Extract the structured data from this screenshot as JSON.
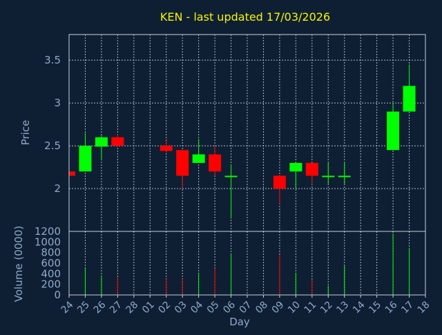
{
  "chart_data": [
    {
      "type": "candlestick",
      "title": "KEN - last updated 17/03/2026",
      "ylabel": "Price",
      "ylim": [
        1.5,
        3.8
      ],
      "yticks": [
        2,
        2.5,
        3,
        3.5
      ],
      "ytick_labels": [
        "2",
        "2.5",
        "3",
        "3.5"
      ],
      "grid": true,
      "colors": {
        "up": "#00ff00",
        "down": "#ff0000",
        "background": "#0f1f33",
        "text": "#8fa9c8",
        "title": "#f5f500"
      },
      "candles": [
        {
          "date": "24",
          "open": 2.2,
          "high": 2.2,
          "low": 2.15,
          "close": 2.15
        },
        {
          "date": "25",
          "open": 2.2,
          "high": 2.65,
          "low": 2.2,
          "close": 2.5
        },
        {
          "date": "26",
          "open": 2.49,
          "high": 2.62,
          "low": 2.33,
          "close": 2.6
        },
        {
          "date": "27",
          "open": 2.6,
          "high": 2.64,
          "low": 2.49,
          "close": 2.5
        },
        {
          "date": "02",
          "open": 2.5,
          "high": 2.56,
          "low": 2.42,
          "close": 2.44
        },
        {
          "date": "03",
          "open": 2.45,
          "high": 2.45,
          "low": 2.01,
          "close": 2.15
        },
        {
          "date": "04",
          "open": 2.3,
          "high": 2.58,
          "low": 2.3,
          "close": 2.4
        },
        {
          "date": "05",
          "open": 2.4,
          "high": 2.5,
          "low": 2.15,
          "close": 2.2
        },
        {
          "date": "06",
          "open": 2.14,
          "high": 2.28,
          "low": 1.65,
          "close": 2.15
        },
        {
          "date": "09",
          "open": 2.15,
          "high": 2.15,
          "low": 1.82,
          "close": 2.0
        },
        {
          "date": "10",
          "open": 2.2,
          "high": 2.31,
          "low": 2.0,
          "close": 2.3
        },
        {
          "date": "11",
          "open": 2.3,
          "high": 2.3,
          "low": 2.05,
          "close": 2.15
        },
        {
          "date": "12",
          "open": 2.14,
          "high": 2.3,
          "low": 2.05,
          "close": 2.15
        },
        {
          "date": "13",
          "open": 2.14,
          "high": 2.3,
          "low": 2.05,
          "close": 2.15
        },
        {
          "date": "16",
          "open": 2.45,
          "high": 3.0,
          "low": 2.45,
          "close": 2.9
        },
        {
          "date": "17",
          "open": 2.9,
          "high": 3.45,
          "low": 2.9,
          "close": 3.2
        }
      ]
    },
    {
      "type": "bar",
      "ylabel": "Volume (0000)",
      "xlabel": "Day",
      "ylim": [
        0,
        1200
      ],
      "yticks": [
        0,
        200,
        400,
        600,
        800,
        1000,
        1200
      ],
      "ytick_labels": [
        "0",
        "200",
        "400",
        "600",
        "800",
        "1000",
        "1200"
      ],
      "categories": [
        "24",
        "25",
        "26",
        "27",
        "28",
        "01",
        "02",
        "03",
        "04",
        "05",
        "06",
        "07",
        "08",
        "09",
        "10",
        "11",
        "12",
        "13",
        "14",
        "15",
        "16",
        "17",
        "18"
      ],
      "values": [
        0,
        500,
        370,
        330,
        0,
        0,
        300,
        300,
        420,
        500,
        760,
        0,
        0,
        750,
        420,
        290,
        170,
        550,
        0,
        0,
        1160,
        890,
        0
      ],
      "colors": [
        "#ff0000",
        "#00ff00",
        "#00ff00",
        "#ff0000",
        "#00ff00",
        "#00ff00",
        "#ff0000",
        "#ff0000",
        "#00ff00",
        "#ff0000",
        "#00ff00",
        "#00ff00",
        "#00ff00",
        "#ff0000",
        "#00ff00",
        "#ff0000",
        "#00ff00",
        "#00ff00",
        "#00ff00",
        "#00ff00",
        "#00ff00",
        "#00ff00",
        "#00ff00"
      ]
    }
  ]
}
